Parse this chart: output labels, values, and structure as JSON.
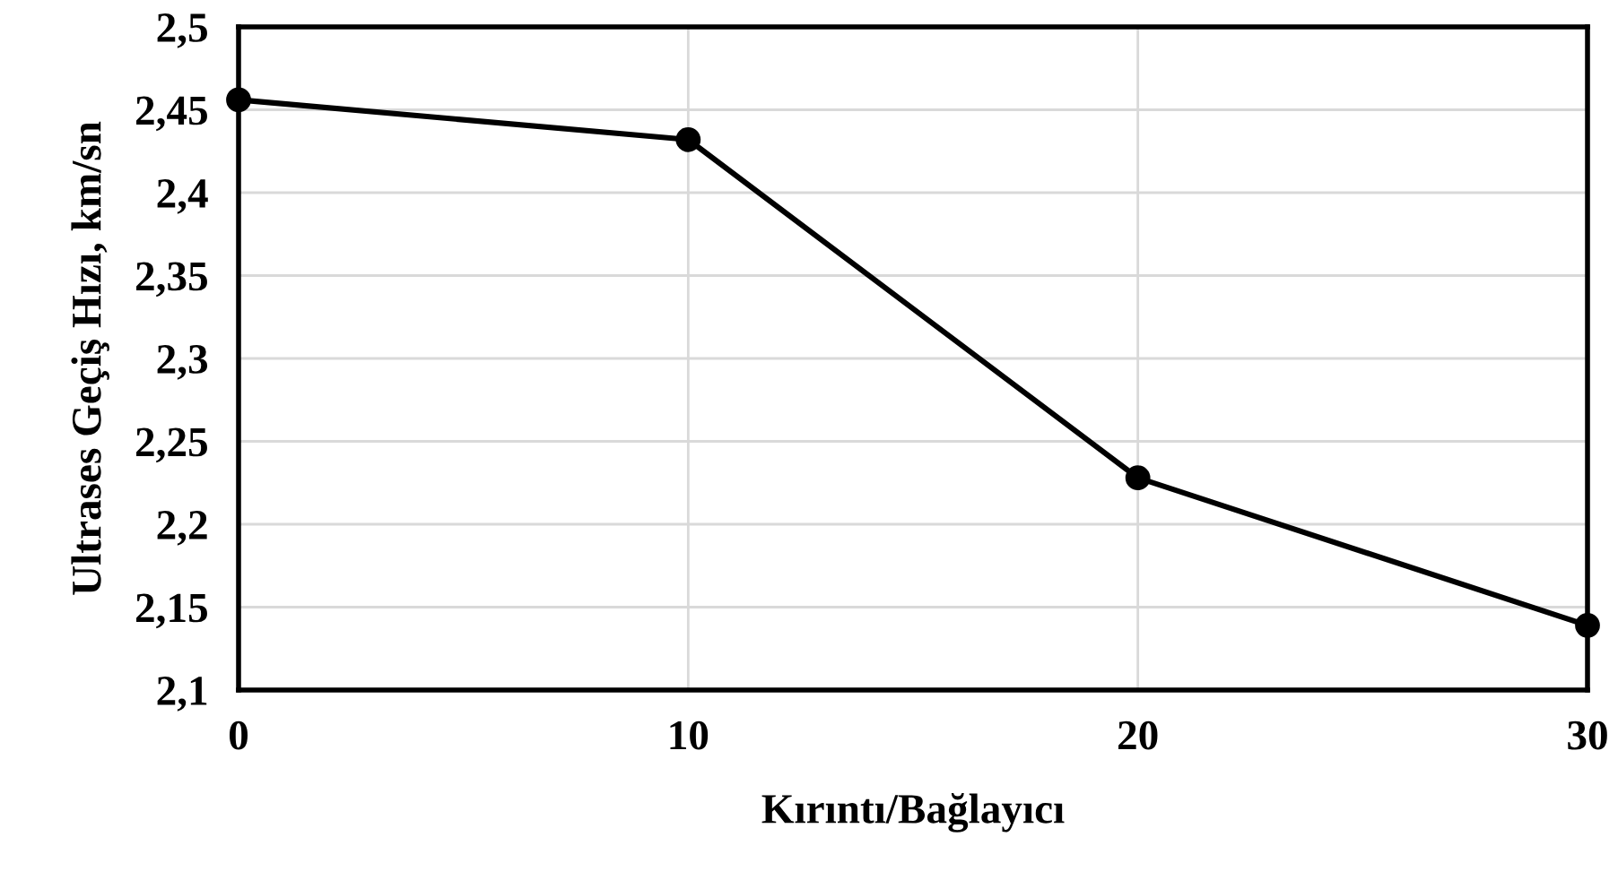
{
  "chart_data": {
    "type": "line",
    "xlabel": "Kırıntı/Bağlayıcı",
    "ylabel": "Ultrases Geçiş Hızı, km/sn",
    "x": [
      0,
      10,
      20,
      30
    ],
    "series": [
      {
        "color": "#000000",
        "values": [
          2.456,
          2.432,
          2.228,
          2.139
        ]
      }
    ],
    "xlim": [
      0,
      30
    ],
    "xticks": [
      0,
      10,
      20,
      30
    ],
    "ylim": [
      2.1,
      2.5
    ],
    "yticks": [
      {
        "value": 2.1,
        "label": "2,1"
      },
      {
        "value": 2.15,
        "label": "2,15"
      },
      {
        "value": 2.2,
        "label": "2,2"
      },
      {
        "value": 2.25,
        "label": "2,25"
      },
      {
        "value": 2.3,
        "label": "2,3"
      },
      {
        "value": 2.35,
        "label": "2,35"
      },
      {
        "value": 2.4,
        "label": "2,4"
      },
      {
        "value": 2.45,
        "label": "2,45"
      },
      {
        "value": 2.5,
        "label": "2,5"
      }
    ],
    "grid": true,
    "marker": "circle",
    "line_style": "solid",
    "legend": false
  }
}
